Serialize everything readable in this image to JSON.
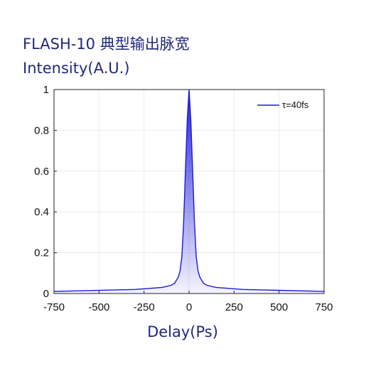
{
  "chart_data": {
    "type": "area",
    "title": "FLASH-10 典型输出脉宽",
    "ylabel": "Intensity(A.U.)",
    "xlabel": "Delay(Ps)",
    "xlim": [
      -750,
      750
    ],
    "ylim": [
      0,
      1
    ],
    "xticks": [
      -750,
      -500,
      -250,
      0,
      250,
      500,
      750
    ],
    "yticks": [
      0,
      0.2,
      0.4,
      0.6,
      0.8,
      1
    ],
    "ytick_labels": [
      "0",
      "0.2",
      "0.4",
      "0.6",
      "0.8",
      "1"
    ],
    "grid": true,
    "legend_position": "top-right",
    "series": [
      {
        "name": "τ=40fs",
        "color": "#1a1adc",
        "x": [
          -750,
          -300,
          -150,
          -100,
          -80,
          -60,
          -50,
          -40,
          -30,
          -20,
          -10,
          0,
          10,
          20,
          30,
          40,
          50,
          60,
          80,
          100,
          150,
          300,
          750
        ],
        "y": [
          0.01,
          0.02,
          0.03,
          0.04,
          0.05,
          0.08,
          0.11,
          0.18,
          0.35,
          0.6,
          0.85,
          1.0,
          0.85,
          0.6,
          0.35,
          0.18,
          0.11,
          0.08,
          0.05,
          0.04,
          0.03,
          0.02,
          0.01
        ]
      }
    ]
  }
}
